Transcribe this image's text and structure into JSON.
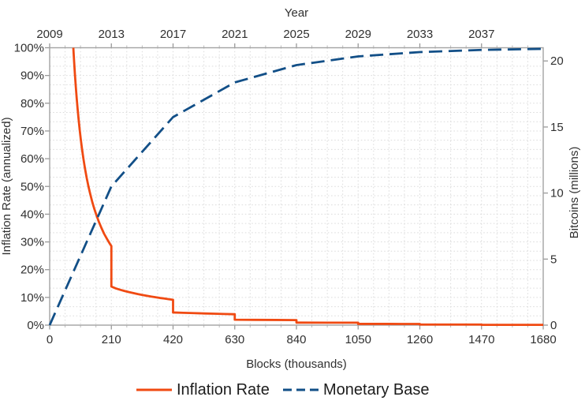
{
  "chart_data": {
    "type": "line",
    "title": "",
    "top_axis": {
      "label": "Year",
      "tick_labels": [
        "2009",
        "2013",
        "2017",
        "2021",
        "2025",
        "2029",
        "2033",
        "2037"
      ],
      "tick_values": [
        0,
        210,
        420,
        630,
        840,
        1050,
        1260,
        1470
      ]
    },
    "x_axis": {
      "label": "Blocks (thousands)",
      "tick_labels": [
        "0",
        "210",
        "420",
        "630",
        "840",
        "1050",
        "1260",
        "1470",
        "1680"
      ],
      "tick_values": [
        0,
        210,
        420,
        630,
        840,
        1050,
        1260,
        1470,
        1680
      ],
      "range": [
        0,
        1680
      ],
      "minor_step": 52.5
    },
    "y_left": {
      "label": "Inflation Rate (annualized)",
      "tick_labels": [
        "0%",
        "10%",
        "20%",
        "30%",
        "40%",
        "50%",
        "60%",
        "70%",
        "80%",
        "90%",
        "100%"
      ],
      "tick_values": [
        0,
        10,
        20,
        30,
        40,
        50,
        60,
        70,
        80,
        90,
        100
      ],
      "range": [
        0,
        100
      ],
      "minor_divisions": 30
    },
    "y_right": {
      "label": "Bitcoins (millions)",
      "tick_labels": [
        "0",
        "5",
        "10",
        "15",
        "20"
      ],
      "tick_values": [
        0,
        5,
        10,
        15,
        20
      ],
      "range": [
        0,
        21
      ]
    },
    "grid": true,
    "legend_position": "bottom",
    "series": [
      {
        "name": "Inflation Rate",
        "color": "#f04a12",
        "style": "solid",
        "axis": "left",
        "points": [
          [
            80.5,
            100
          ],
          [
            83,
            95.4
          ],
          [
            86,
            90.3
          ],
          [
            89,
            85.9
          ],
          [
            92,
            81.8
          ],
          [
            95,
            78.1
          ],
          [
            98,
            74.7
          ],
          [
            102,
            70.6
          ],
          [
            106,
            66.9
          ],
          [
            110,
            63.6
          ],
          [
            115,
            59.9
          ],
          [
            120,
            56.6
          ],
          [
            126,
            53.1
          ],
          [
            132,
            50.0
          ],
          [
            138,
            47.3
          ],
          [
            145,
            44.4
          ],
          [
            152,
            41.9
          ],
          [
            160,
            39.4
          ],
          [
            168,
            37.1
          ],
          [
            176,
            35.1
          ],
          [
            185,
            33.0
          ],
          [
            195,
            31.1
          ],
          [
            205,
            29.3
          ],
          [
            210,
            28.5
          ],
          [
            210,
            13.9
          ],
          [
            225,
            13.25
          ],
          [
            240,
            12.75
          ],
          [
            255,
            12.3
          ],
          [
            270,
            11.9
          ],
          [
            285,
            11.55
          ],
          [
            300,
            11.2
          ],
          [
            315,
            10.9
          ],
          [
            330,
            10.6
          ],
          [
            345,
            10.3
          ],
          [
            360,
            10.05
          ],
          [
            375,
            9.8
          ],
          [
            390,
            9.6
          ],
          [
            405,
            9.35
          ],
          [
            420,
            9.15
          ],
          [
            420,
            4.57
          ],
          [
            455,
            4.45
          ],
          [
            490,
            4.33
          ],
          [
            525,
            4.22
          ],
          [
            560,
            4.12
          ],
          [
            595,
            4.02
          ],
          [
            630,
            3.93
          ],
          [
            630,
            1.96
          ],
          [
            700,
            1.9
          ],
          [
            770,
            1.86
          ],
          [
            840,
            1.82
          ],
          [
            840,
            0.91
          ],
          [
            945,
            0.89
          ],
          [
            1050,
            0.88
          ],
          [
            1050,
            0.44
          ],
          [
            1155,
            0.44
          ],
          [
            1260,
            0.43
          ],
          [
            1260,
            0.22
          ],
          [
            1470,
            0.22
          ],
          [
            1470,
            0.11
          ],
          [
            1680,
            0.11
          ]
        ]
      },
      {
        "name": "Monetary Base",
        "color": "#124f87",
        "style": "dashed",
        "axis": "right",
        "points": [
          [
            0,
            0
          ],
          [
            210,
            10.5
          ],
          [
            420,
            15.75
          ],
          [
            630,
            18.375
          ],
          [
            840,
            19.6875
          ],
          [
            1050,
            20.3438
          ],
          [
            1260,
            20.6719
          ],
          [
            1470,
            20.8359
          ],
          [
            1680,
            20.918
          ]
        ]
      }
    ]
  },
  "style": {
    "background": "#ffffff",
    "frame_color": "#a3a3a3",
    "major_tick_color": "#999999",
    "minor_tick_color": "#bdbdbd",
    "grid_color": "#dcdcdc",
    "text_color": "#303030"
  }
}
